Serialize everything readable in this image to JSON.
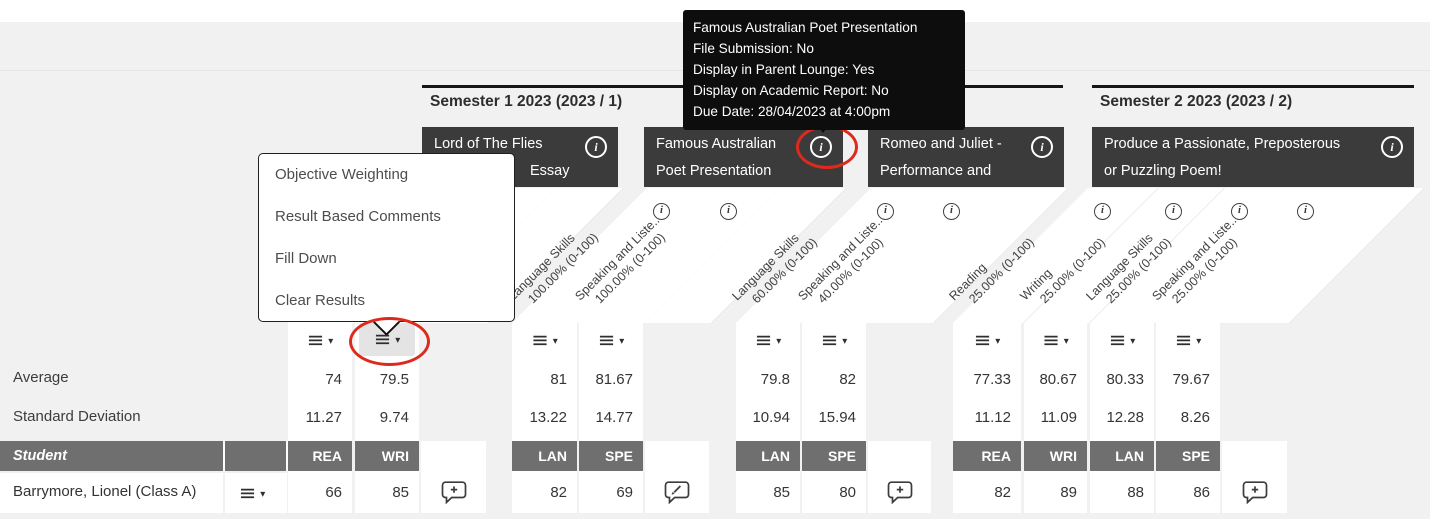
{
  "tooltip": {
    "lines": [
      "Famous Australian Poet Presentation",
      "File Submission: No",
      "Display in Parent Lounge: Yes",
      "Display on Academic Report: No",
      "Due Date: 28/04/2023 at 4:00pm"
    ]
  },
  "semesters": [
    {
      "title": "Semester 1 2023 (2023 / 1)"
    },
    {
      "title": "Semester 2 2023 (2023 / 2)"
    }
  ],
  "context_menu": {
    "items": [
      "Objective Weighting",
      "Result Based Comments",
      "Fill Down",
      "Clear Results"
    ]
  },
  "groups": [
    {
      "title_line1": "Lord of The Flies",
      "title_line2": "Essay",
      "comment_icon": "add-comment-icon",
      "info_circled": false
    },
    {
      "title_line1": "Famous Australian",
      "title_line2": "Poet Presentation",
      "comment_icon": "edit-comment-icon",
      "info_circled": true
    },
    {
      "title_line1": "Romeo and Juliet -",
      "title_line2": "Performance and",
      "comment_icon": "add-comment-icon",
      "info_circled": false
    },
    {
      "title_line1": "Produce a Passionate, Preposterous",
      "title_line2": "or Puzzling Poem!",
      "comment_icon": "add-comment-icon",
      "info_circled": false
    }
  ],
  "columns": [
    {
      "group": 0,
      "code": "REA",
      "objective": "",
      "weight": "",
      "average": "74",
      "std_dev": "11.27",
      "student_result": "66",
      "menu_highlighted": false
    },
    {
      "group": 0,
      "code": "WRI",
      "objective": "",
      "weight": "",
      "average": "79.5",
      "std_dev": "9.74",
      "student_result": "85",
      "menu_highlighted": true
    },
    {
      "group": 1,
      "code": "LAN",
      "objective": "Language Skills",
      "weight": "100.00% (0-100)",
      "average": "81",
      "std_dev": "13.22",
      "student_result": "82",
      "menu_highlighted": false
    },
    {
      "group": 1,
      "code": "SPE",
      "objective": "Speaking and Liste..",
      "weight": "100.00% (0-100)",
      "average": "81.67",
      "std_dev": "14.77",
      "student_result": "69",
      "menu_highlighted": false
    },
    {
      "group": 2,
      "code": "LAN",
      "objective": "Language Skills",
      "weight": "60.00% (0-100)",
      "average": "79.8",
      "std_dev": "10.94",
      "student_result": "85",
      "menu_highlighted": false
    },
    {
      "group": 2,
      "code": "SPE",
      "objective": "Speaking and Liste..",
      "weight": "40.00% (0-100)",
      "average": "82",
      "std_dev": "15.94",
      "student_result": "80",
      "menu_highlighted": false
    },
    {
      "group": 3,
      "code": "REA",
      "objective": "Reading",
      "weight": "25.00% (0-100)",
      "average": "77.33",
      "std_dev": "11.12",
      "student_result": "82",
      "menu_highlighted": false
    },
    {
      "group": 3,
      "code": "WRI",
      "objective": "Writing",
      "weight": "25.00% (0-100)",
      "average": "80.67",
      "std_dev": "11.09",
      "student_result": "89",
      "menu_highlighted": false
    },
    {
      "group": 3,
      "code": "LAN",
      "objective": "Language Skills",
      "weight": "25.00% (0-100)",
      "average": "80.33",
      "std_dev": "12.28",
      "student_result": "88",
      "menu_highlighted": false
    },
    {
      "group": 3,
      "code": "SPE",
      "objective": "Speaking and Liste..",
      "weight": "25.00% (0-100)",
      "average": "79.67",
      "std_dev": "8.26",
      "student_result": "86",
      "menu_highlighted": false
    }
  ],
  "rows": {
    "average_label": "Average",
    "std_dev_label": "Standard Deviation",
    "student_header": "Student",
    "student_name": "Barrymore, Lionel (Class A)"
  },
  "annotations": {
    "dropdown_circle_column": 1,
    "info_circle_group": 1
  },
  "colors": {
    "annotation_red": "#dc2b1c",
    "assessment_header_bg": "#3b3b3b",
    "student_bar_bg": "#6f6f6f",
    "tooltip_bg": "#0d0d0d"
  }
}
